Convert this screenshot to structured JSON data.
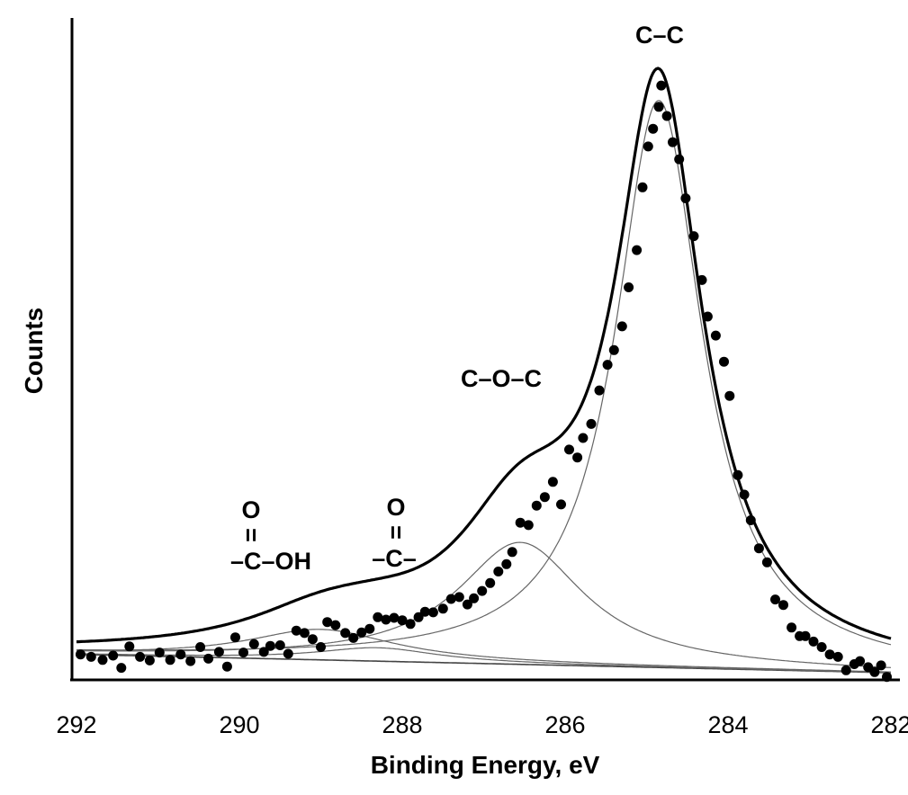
{
  "chart_data": {
    "type": "scatter",
    "xlabel": "Binding Energy, eV",
    "ylabel": "Counts",
    "xlim": [
      292,
      282
    ],
    "x_reversed": true,
    "ylim": [
      0,
      100
    ],
    "x_ticks": [
      "292",
      "290",
      "288",
      "286",
      "284",
      "282"
    ],
    "grid": false,
    "legend": "none",
    "annotations": {
      "cc": "C–C",
      "coc": "C–O–C",
      "co_o": "O",
      "co_bond": "=",
      "co_c": "–C–",
      "cooh_o": "O",
      "cooh_bond": "=",
      "cooh_c": "–C–OH"
    },
    "components": [
      {
        "name": "C–C",
        "center": 284.85,
        "height": 93,
        "fwhm": 1.3
      },
      {
        "name": "C–O–C",
        "center": 286.55,
        "height": 20,
        "fwhm": 1.9
      },
      {
        "name": "C=O",
        "center": 288.3,
        "height": 2.2,
        "fwhm": 1.8
      },
      {
        "name": "O–C=O",
        "center": 289.0,
        "height": 5.0,
        "fwhm": 2.2
      }
    ],
    "baseline": [
      {
        "x": 292,
        "y": 3
      },
      {
        "x": 282,
        "y": 0
      }
    ],
    "points": [
      {
        "x": 291.95,
        "y": 3.0
      },
      {
        "x": 291.82,
        "y": 2.6
      },
      {
        "x": 291.68,
        "y": 2.1
      },
      {
        "x": 291.55,
        "y": 2.8
      },
      {
        "x": 291.45,
        "y": 0.8
      },
      {
        "x": 291.35,
        "y": 4.3
      },
      {
        "x": 291.22,
        "y": 2.6
      },
      {
        "x": 291.1,
        "y": 2.0
      },
      {
        "x": 290.98,
        "y": 3.3
      },
      {
        "x": 290.85,
        "y": 2.1
      },
      {
        "x": 290.72,
        "y": 3.0
      },
      {
        "x": 290.6,
        "y": 1.9
      },
      {
        "x": 290.48,
        "y": 4.2
      },
      {
        "x": 290.38,
        "y": 2.3
      },
      {
        "x": 290.25,
        "y": 3.4
      },
      {
        "x": 290.15,
        "y": 1.0
      },
      {
        "x": 290.05,
        "y": 5.8
      },
      {
        "x": 289.95,
        "y": 3.3
      },
      {
        "x": 289.82,
        "y": 4.7
      },
      {
        "x": 289.7,
        "y": 3.4
      },
      {
        "x": 289.62,
        "y": 4.4
      },
      {
        "x": 289.5,
        "y": 4.5
      },
      {
        "x": 289.4,
        "y": 3.1
      },
      {
        "x": 289.3,
        "y": 6.9
      },
      {
        "x": 289.2,
        "y": 6.5
      },
      {
        "x": 289.1,
        "y": 5.5
      },
      {
        "x": 289.0,
        "y": 4.2
      },
      {
        "x": 288.92,
        "y": 8.3
      },
      {
        "x": 288.82,
        "y": 7.8
      },
      {
        "x": 288.7,
        "y": 6.5
      },
      {
        "x": 288.6,
        "y": 5.7
      },
      {
        "x": 288.5,
        "y": 6.6
      },
      {
        "x": 288.4,
        "y": 7.2
      },
      {
        "x": 288.3,
        "y": 9.1
      },
      {
        "x": 288.2,
        "y": 8.7
      },
      {
        "x": 288.1,
        "y": 9.0
      },
      {
        "x": 288.0,
        "y": 8.6
      },
      {
        "x": 287.9,
        "y": 8.0
      },
      {
        "x": 287.8,
        "y": 9.1
      },
      {
        "x": 287.72,
        "y": 10.0
      },
      {
        "x": 287.62,
        "y": 9.9
      },
      {
        "x": 287.5,
        "y": 10.5
      },
      {
        "x": 287.4,
        "y": 12.1
      },
      {
        "x": 287.3,
        "y": 12.4
      },
      {
        "x": 287.2,
        "y": 11.2
      },
      {
        "x": 287.12,
        "y": 12.2
      },
      {
        "x": 287.02,
        "y": 13.4
      },
      {
        "x": 286.92,
        "y": 14.7
      },
      {
        "x": 286.82,
        "y": 16.6
      },
      {
        "x": 286.72,
        "y": 17.8
      },
      {
        "x": 286.65,
        "y": 19.8
      },
      {
        "x": 286.55,
        "y": 24.6
      },
      {
        "x": 286.45,
        "y": 24.2
      },
      {
        "x": 286.35,
        "y": 27.4
      },
      {
        "x": 286.25,
        "y": 28.8
      },
      {
        "x": 286.15,
        "y": 31.3
      },
      {
        "x": 286.05,
        "y": 27.6
      },
      {
        "x": 285.95,
        "y": 36.6
      },
      {
        "x": 285.85,
        "y": 35.3
      },
      {
        "x": 285.78,
        "y": 38.5
      },
      {
        "x": 285.68,
        "y": 40.8
      },
      {
        "x": 285.58,
        "y": 46.3
      },
      {
        "x": 285.48,
        "y": 50.5
      },
      {
        "x": 285.4,
        "y": 52.9
      },
      {
        "x": 285.3,
        "y": 56.8
      },
      {
        "x": 285.22,
        "y": 63.2
      },
      {
        "x": 285.12,
        "y": 69.3
      },
      {
        "x": 285.05,
        "y": 79.6
      },
      {
        "x": 284.98,
        "y": 86.3
      },
      {
        "x": 284.92,
        "y": 89.2
      },
      {
        "x": 284.85,
        "y": 92.8
      },
      {
        "x": 284.82,
        "y": 96.3
      },
      {
        "x": 284.75,
        "y": 91.3
      },
      {
        "x": 284.68,
        "y": 87.0
      },
      {
        "x": 284.6,
        "y": 84.2
      },
      {
        "x": 284.52,
        "y": 77.8
      },
      {
        "x": 284.42,
        "y": 71.6
      },
      {
        "x": 284.32,
        "y": 64.4
      },
      {
        "x": 284.25,
        "y": 58.4
      },
      {
        "x": 284.15,
        "y": 55.3
      },
      {
        "x": 284.05,
        "y": 51.0
      },
      {
        "x": 283.98,
        "y": 45.4
      },
      {
        "x": 283.88,
        "y": 32.4
      },
      {
        "x": 283.8,
        "y": 29.2
      },
      {
        "x": 283.72,
        "y": 25.0
      },
      {
        "x": 283.62,
        "y": 20.4
      },
      {
        "x": 283.52,
        "y": 18.1
      },
      {
        "x": 283.42,
        "y": 12.0
      },
      {
        "x": 283.32,
        "y": 11.1
      },
      {
        "x": 283.22,
        "y": 7.4
      },
      {
        "x": 283.12,
        "y": 6.0
      },
      {
        "x": 283.05,
        "y": 6.0
      },
      {
        "x": 282.95,
        "y": 5.1
      },
      {
        "x": 282.85,
        "y": 4.2
      },
      {
        "x": 282.75,
        "y": 3.0
      },
      {
        "x": 282.65,
        "y": 2.6
      },
      {
        "x": 282.55,
        "y": 0.4
      },
      {
        "x": 282.45,
        "y": 1.4
      },
      {
        "x": 282.38,
        "y": 1.9
      },
      {
        "x": 282.28,
        "y": 0.9
      },
      {
        "x": 282.2,
        "y": 0.1
      },
      {
        "x": 282.12,
        "y": 1.2
      },
      {
        "x": 282.05,
        "y": -0.7
      }
    ]
  }
}
